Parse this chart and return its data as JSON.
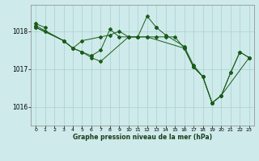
{
  "title": "Graphe pression niveau de la mer (hPa)",
  "background_color": "#ceeaea",
  "grid_color": "#aacfcf",
  "line_color": "#1a5c1a",
  "xlim": [
    -0.5,
    23.5
  ],
  "ylim": [
    1015.5,
    1018.7
  ],
  "yticks": [
    1016,
    1017,
    1018
  ],
  "xticks": [
    0,
    1,
    2,
    3,
    4,
    5,
    6,
    7,
    8,
    9,
    10,
    11,
    12,
    13,
    14,
    15,
    16,
    17,
    18,
    19,
    20,
    21,
    22,
    23
  ],
  "series": [
    {
      "x": [
        0,
        1,
        2,
        3,
        4,
        5,
        6,
        7,
        8,
        9,
        10,
        11,
        12,
        13,
        14,
        15,
        16,
        17,
        18,
        19,
        20,
        21,
        22,
        23
      ],
      "y": [
        1018.2,
        1018.1,
        null,
        null,
        null,
        null,
        null,
        null,
        null,
        null,
        null,
        null,
        null,
        null,
        null,
        null,
        null,
        null,
        null,
        null,
        null,
        null,
        null,
        null
      ]
    },
    {
      "x": [
        0,
        1,
        3,
        4,
        5,
        6,
        7,
        8,
        9,
        10,
        11,
        12,
        13,
        14,
        16,
        17,
        18,
        19,
        20,
        21,
        22,
        23
      ],
      "y": [
        1018.1,
        1018.0,
        1017.75,
        1017.55,
        1017.75,
        1017.85,
        1017.85,
        1017.9,
        1018.0,
        1017.85,
        1017.85,
        1018.4,
        1018.1,
        1017.9,
        1017.6,
        1017.1,
        1016.8,
        1016.1,
        1016.3,
        1016.9,
        1017.45,
        1017.3
      ]
    },
    {
      "x": [
        0,
        3,
        4,
        5,
        6,
        7,
        8,
        9,
        10,
        11,
        12,
        13,
        14,
        15,
        16,
        17,
        18,
        19,
        20,
        23
      ],
      "y": [
        1018.15,
        1017.75,
        1017.55,
        1017.45,
        1017.35,
        1017.5,
        1018.05,
        1017.85,
        1017.85,
        1017.85,
        1017.85,
        1017.85,
        1017.85,
        1017.85,
        1017.55,
        1017.05,
        1016.8,
        1016.1,
        1016.3,
        1017.3
      ]
    },
    {
      "x": [
        0,
        3,
        4,
        5,
        6,
        7,
        10,
        11,
        12,
        13,
        14,
        15,
        16,
        17,
        18,
        19,
        20,
        21,
        22,
        23
      ],
      "y": [
        1018.1,
        1017.75,
        1017.55,
        1017.45,
        1017.3,
        1017.2,
        1017.85,
        1017.85,
        1017.85,
        1017.85,
        1017.85,
        1017.85,
        1017.55,
        1017.05,
        1016.8,
        1016.1,
        1016.3,
        1016.9,
        1017.45,
        1017.3
      ]
    }
  ],
  "segments": [
    {
      "x": [
        0,
        1
      ],
      "y": [
        1018.2,
        1018.1
      ]
    },
    {
      "x": [
        0,
        1,
        3,
        4,
        5,
        7,
        8,
        9,
        10,
        11,
        12,
        13
      ],
      "y": [
        1018.1,
        1018.0,
        1017.75,
        1017.55,
        1017.75,
        1017.85,
        1017.9,
        1018.0,
        1017.85,
        1017.85,
        1018.4,
        1018.1
      ]
    },
    {
      "x": [
        13,
        14,
        16,
        17,
        18,
        19,
        20,
        21,
        22,
        23
      ],
      "y": [
        1018.1,
        1017.9,
        1017.6,
        1017.1,
        1016.8,
        1016.1,
        1016.3,
        1016.9,
        1017.45,
        1017.3
      ]
    },
    {
      "x": [
        0,
        3,
        4,
        5,
        6,
        7,
        8,
        9,
        10,
        11,
        12,
        13,
        14,
        15,
        16,
        17,
        18,
        19,
        20,
        23
      ],
      "y": [
        1018.15,
        1017.75,
        1017.55,
        1017.45,
        1017.35,
        1017.5,
        1018.05,
        1017.85,
        1017.85,
        1017.85,
        1017.85,
        1017.85,
        1017.85,
        1017.85,
        1017.55,
        1017.05,
        1016.8,
        1016.1,
        1016.3,
        1017.3
      ]
    },
    {
      "x": [
        0,
        3,
        4,
        5,
        6,
        7,
        10,
        11,
        12,
        16,
        17,
        18,
        19,
        20,
        21,
        22,
        23
      ],
      "y": [
        1018.1,
        1017.75,
        1017.55,
        1017.45,
        1017.3,
        1017.2,
        1017.85,
        1017.85,
        1017.85,
        1017.55,
        1017.05,
        1016.8,
        1016.1,
        1016.3,
        1016.9,
        1017.45,
        1017.3
      ]
    }
  ]
}
